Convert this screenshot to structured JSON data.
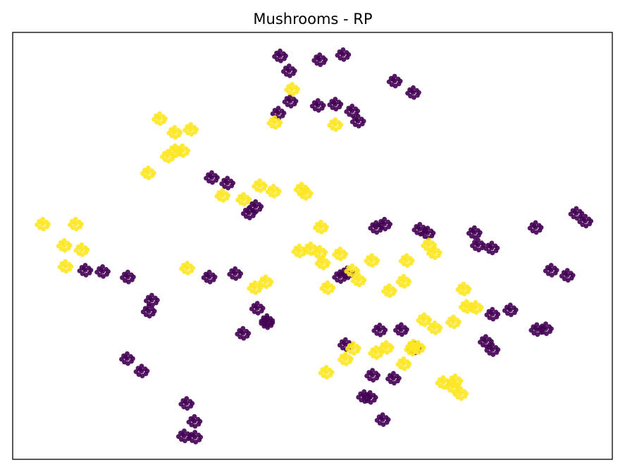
{
  "chart_data": {
    "type": "scatter",
    "title": "Mushrooms - RP",
    "xlabel": "",
    "ylabel": "",
    "xlim": [
      0,
      100
    ],
    "ylim": [
      0,
      100
    ],
    "ticks": "none",
    "grid": false,
    "legend": "none",
    "colors": {
      "class_0": "#440154",
      "class_1": "#fde725"
    },
    "series": [
      {
        "values": [
          [
            46.1,
            91.0
          ],
          [
            44.6,
            94.5
          ],
          [
            55.1,
            94.8
          ],
          [
            51.2,
            93.6
          ],
          [
            63.7,
            88.6
          ],
          [
            66.8,
            85.9
          ],
          [
            44.3,
            81.1
          ],
          [
            46.3,
            83.9
          ],
          [
            50.9,
            82.9
          ],
          [
            53.8,
            83.2
          ],
          [
            56.6,
            81.6
          ],
          [
            57.6,
            79.2
          ],
          [
            39.4,
            57.7
          ],
          [
            40.5,
            59.2
          ],
          [
            35.8,
            64.7
          ],
          [
            33.2,
            66.0
          ],
          [
            12.1,
            44.3
          ],
          [
            15.0,
            44.0
          ],
          [
            19.2,
            42.7
          ],
          [
            23.2,
            37.3
          ],
          [
            22.7,
            34.7
          ],
          [
            32.8,
            42.7
          ],
          [
            37.1,
            43.5
          ],
          [
            40.8,
            35.4
          ],
          [
            42.4,
            32.5
          ],
          [
            54.6,
            42.8
          ],
          [
            55.8,
            43.7
          ],
          [
            60.6,
            54.3
          ],
          [
            62.0,
            55.1
          ],
          [
            67.9,
            53.9
          ],
          [
            69.2,
            53.0
          ],
          [
            77.0,
            53.1
          ],
          [
            77.6,
            50.2
          ],
          [
            79.9,
            49.5
          ],
          [
            87.2,
            54.3
          ],
          [
            94.0,
            57.6
          ],
          [
            95.5,
            55.8
          ],
          [
            89.8,
            44.3
          ],
          [
            92.5,
            43.1
          ],
          [
            80.0,
            34.0
          ],
          [
            83.0,
            35.0
          ],
          [
            87.4,
            30.4
          ],
          [
            88.9,
            30.6
          ],
          [
            78.9,
            27.6
          ],
          [
            80.0,
            25.7
          ],
          [
            61.2,
            30.3
          ],
          [
            64.8,
            30.4
          ],
          [
            67.0,
            26.1
          ],
          [
            55.5,
            26.9
          ],
          [
            60.0,
            19.7
          ],
          [
            63.5,
            19.0
          ],
          [
            59.6,
            14.5
          ],
          [
            61.7,
            9.3
          ],
          [
            58.6,
            14.7
          ],
          [
            38.4,
            29.5
          ],
          [
            42.4,
            32.0
          ],
          [
            19.1,
            23.6
          ],
          [
            21.5,
            20.7
          ],
          [
            29.0,
            13.1
          ],
          [
            30.3,
            8.9
          ],
          [
            28.6,
            5.5
          ],
          [
            30.4,
            5.2
          ]
        ]
      },
      {
        "values": [
          [
            46.6,
            86.7
          ],
          [
            43.7,
            78.9
          ],
          [
            53.8,
            78.4
          ],
          [
            24.5,
            79.8
          ],
          [
            27.0,
            76.6
          ],
          [
            29.7,
            77.3
          ],
          [
            28.3,
            72.3
          ],
          [
            27.1,
            72.3
          ],
          [
            22.6,
            67.1
          ],
          [
            25.9,
            71.0
          ],
          [
            5.0,
            55.1
          ],
          [
            8.6,
            50.1
          ],
          [
            11.5,
            49.1
          ],
          [
            10.5,
            55.1
          ],
          [
            8.8,
            45.2
          ],
          [
            29.1,
            44.8
          ],
          [
            42.2,
            41.6
          ],
          [
            40.4,
            40.2
          ],
          [
            41.2,
            64.1
          ],
          [
            43.5,
            62.8
          ],
          [
            35.0,
            61.8
          ],
          [
            38.5,
            60.9
          ],
          [
            48.2,
            63.3
          ],
          [
            48.8,
            62.3
          ],
          [
            51.4,
            54.4
          ],
          [
            54.6,
            48.1
          ],
          [
            47.8,
            48.8
          ],
          [
            49.7,
            49.3
          ],
          [
            51.2,
            48.5
          ],
          [
            51.7,
            46.0
          ],
          [
            52.5,
            40.2
          ],
          [
            56.6,
            44.2
          ],
          [
            57.7,
            42.0
          ],
          [
            59.9,
            46.6
          ],
          [
            62.8,
            39.5
          ],
          [
            65.2,
            41.7
          ],
          [
            65.7,
            46.6
          ],
          [
            69.4,
            50.2
          ],
          [
            70.3,
            48.4
          ],
          [
            75.2,
            39.9
          ],
          [
            75.7,
            35.8
          ],
          [
            77.2,
            35.6
          ],
          [
            73.5,
            32.2
          ],
          [
            70.4,
            30.8
          ],
          [
            67.6,
            26.2
          ],
          [
            65.2,
            22.4
          ],
          [
            52.3,
            20.4
          ],
          [
            55.5,
            23.5
          ],
          [
            56.8,
            26.0
          ],
          [
            60.6,
            25.0
          ],
          [
            62.3,
            26.2
          ],
          [
            66.6,
            25.8
          ],
          [
            66.8,
            26.5
          ],
          [
            68.6,
            32.7
          ],
          [
            71.8,
            18.0
          ],
          [
            73.4,
            17.0
          ],
          [
            73.8,
            18.4
          ],
          [
            74.7,
            15.4
          ]
        ]
      }
    ]
  }
}
